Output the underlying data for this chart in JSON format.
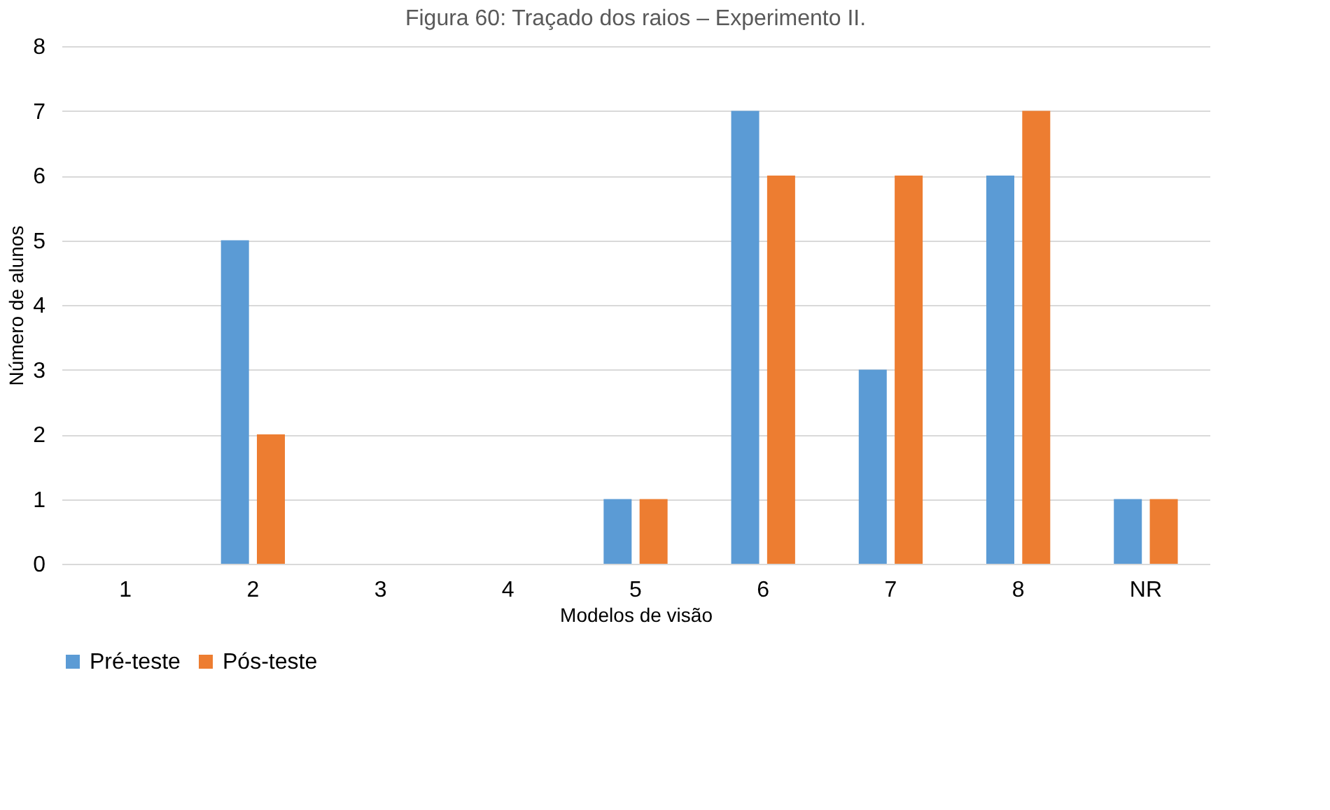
{
  "chart_data": {
    "type": "bar",
    "title": "Figura 60: Traçado dos raios – Experimento II.",
    "xlabel": "Modelos de visão",
    "ylabel": "Número de alunos",
    "categories": [
      "1",
      "2",
      "3",
      "4",
      "5",
      "6",
      "7",
      "8",
      "NR"
    ],
    "series": [
      {
        "name": "Pré-teste",
        "color": "#5b9bd5",
        "values": [
          0,
          5,
          0,
          0,
          1,
          7,
          3,
          6,
          1
        ]
      },
      {
        "name": "Pós-teste",
        "color": "#ed7d31",
        "values": [
          0,
          2,
          0,
          0,
          1,
          6,
          6,
          7,
          1
        ]
      }
    ],
    "ylim": [
      0,
      8
    ],
    "yticks": [
      0,
      1,
      2,
      3,
      4,
      5,
      6,
      7,
      8
    ],
    "grid": "y",
    "legend": "bottom"
  }
}
